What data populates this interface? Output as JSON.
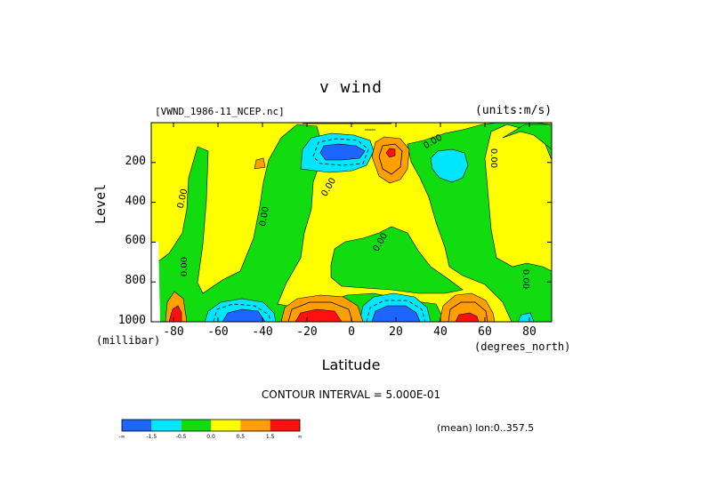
{
  "chart_data": {
    "type": "contour",
    "title": "v wind",
    "dataset_label": "[VWND_1986-11_NCEP.nc]",
    "units_label": "(units:m/s)",
    "xlabel": "Latitude",
    "x_unit_label": "(degrees_north)",
    "ylabel": "Level",
    "y_unit_label": "(millibar)",
    "x_ticks": [
      "-80",
      "-60",
      "-40",
      "-20",
      "0",
      "20",
      "40",
      "60",
      "80"
    ],
    "x_tick_values": [
      -80,
      -60,
      -40,
      -20,
      0,
      20,
      40,
      60,
      80
    ],
    "y_ticks": [
      "200",
      "400",
      "600",
      "800",
      "1000"
    ],
    "y_tick_values": [
      200,
      400,
      600,
      800,
      1000
    ],
    "xlim": [
      -90,
      90
    ],
    "ylim": [
      1000,
      0
    ],
    "contour_interval_label": "CONTOUR INTERVAL = 5.000E-01",
    "mean_label": "(mean) lon:0..357.5",
    "zero_contour_label": "0.00",
    "colors": {
      "lt_-1.5": "#1e64ff",
      "-1.5_-0.5": "#00e6ff",
      "-0.5_0.0": "#10dc10",
      "0.0_0.5": "#ffff00",
      "0.5_1.5": "#ffa000",
      "gt_1.5": "#ff1010"
    },
    "colorbar": {
      "colors": [
        "#1e64ff",
        "#00e6ff",
        "#10dc10",
        "#ffff00",
        "#ffa000",
        "#ff1010"
      ],
      "labels": [
        "-∞",
        "-1.5",
        "-0.5",
        "0.0",
        "0.5",
        "1.5",
        "∞"
      ]
    },
    "features": [
      {
        "kind": "min",
        "lat": -10,
        "level": 150,
        "value": -2.0
      },
      {
        "kind": "max",
        "lat": 15,
        "level": 150,
        "value": 1.0
      },
      {
        "kind": "min",
        "lat": 43,
        "level": 180,
        "value": -1.0
      },
      {
        "kind": "min",
        "lat": -58,
        "level": 950,
        "value": -2.0
      },
      {
        "kind": "max",
        "lat": -17,
        "level": 960,
        "value": 2.0
      },
      {
        "kind": "min",
        "lat": 12,
        "level": 960,
        "value": -2.0
      },
      {
        "kind": "max",
        "lat": 50,
        "level": 960,
        "value": 2.0
      },
      {
        "kind": "max",
        "lat": -82,
        "level": 960,
        "value": 2.0
      }
    ]
  }
}
